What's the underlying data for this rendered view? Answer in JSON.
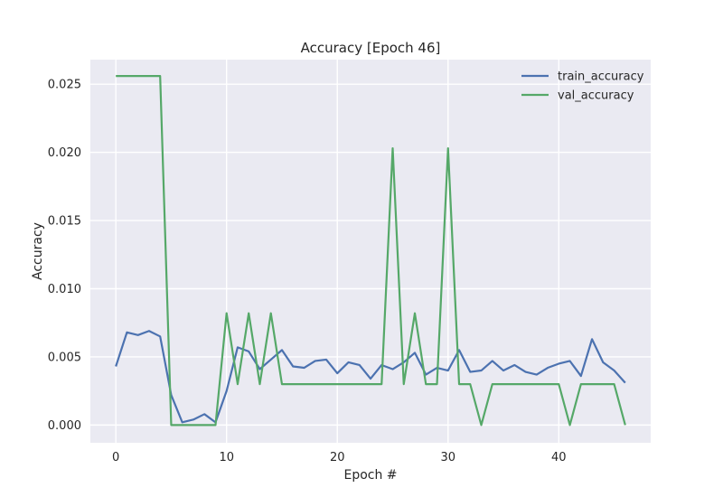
{
  "chart_data": {
    "type": "line",
    "title": "Accuracy [Epoch 46]",
    "xlabel": "Epoch #",
    "ylabel": "Accuracy",
    "xlim": [
      -2.3,
      48.3
    ],
    "ylim": [
      -0.0013,
      0.0268
    ],
    "xticks": [
      0,
      10,
      20,
      30,
      40
    ],
    "yticks": [
      0.0,
      0.005,
      0.01,
      0.015,
      0.02,
      0.025
    ],
    "ytick_labels": [
      "0.000",
      "0.005",
      "0.010",
      "0.015",
      "0.020",
      "0.025"
    ],
    "grid": true,
    "legend_position": "top-right",
    "x": [
      0,
      1,
      2,
      3,
      4,
      5,
      6,
      7,
      8,
      9,
      10,
      11,
      12,
      13,
      14,
      15,
      16,
      17,
      18,
      19,
      20,
      21,
      22,
      23,
      24,
      25,
      26,
      27,
      28,
      29,
      30,
      31,
      32,
      33,
      34,
      35,
      36,
      37,
      38,
      39,
      40,
      41,
      42,
      43,
      44,
      45,
      46
    ],
    "series": [
      {
        "name": "train_accuracy",
        "color": "#4c72b0",
        "values": [
          0.0043,
          0.0068,
          0.0066,
          0.0069,
          0.0065,
          0.0022,
          0.0002,
          0.0004,
          0.0008,
          0.0002,
          0.0025,
          0.0057,
          0.0054,
          0.0041,
          0.0048,
          0.0055,
          0.0043,
          0.0042,
          0.0047,
          0.0048,
          0.0038,
          0.0046,
          0.0044,
          0.0034,
          0.0044,
          0.0041,
          0.0046,
          0.0053,
          0.0037,
          0.0042,
          0.004,
          0.0055,
          0.0039,
          0.004,
          0.0047,
          0.004,
          0.0044,
          0.0039,
          0.0037,
          0.0042,
          0.0045,
          0.0047,
          0.0036,
          0.0063,
          0.0046,
          0.004,
          0.0031
        ]
      },
      {
        "name": "val_accuracy",
        "color": "#55a868",
        "values": [
          0.0256,
          0.0256,
          0.0256,
          0.0256,
          0.0256,
          0.0,
          0.0,
          0.0,
          0.0,
          0.0,
          0.0082,
          0.003,
          0.0082,
          0.003,
          0.0082,
          0.003,
          0.003,
          0.003,
          0.003,
          0.003,
          0.003,
          0.003,
          0.003,
          0.003,
          0.003,
          0.0203,
          0.003,
          0.0082,
          0.003,
          0.003,
          0.0203,
          0.003,
          0.003,
          0.0,
          0.003,
          0.003,
          0.003,
          0.003,
          0.003,
          0.003,
          0.003,
          0.0,
          0.003,
          0.003,
          0.003,
          0.003,
          0.0
        ]
      }
    ]
  }
}
